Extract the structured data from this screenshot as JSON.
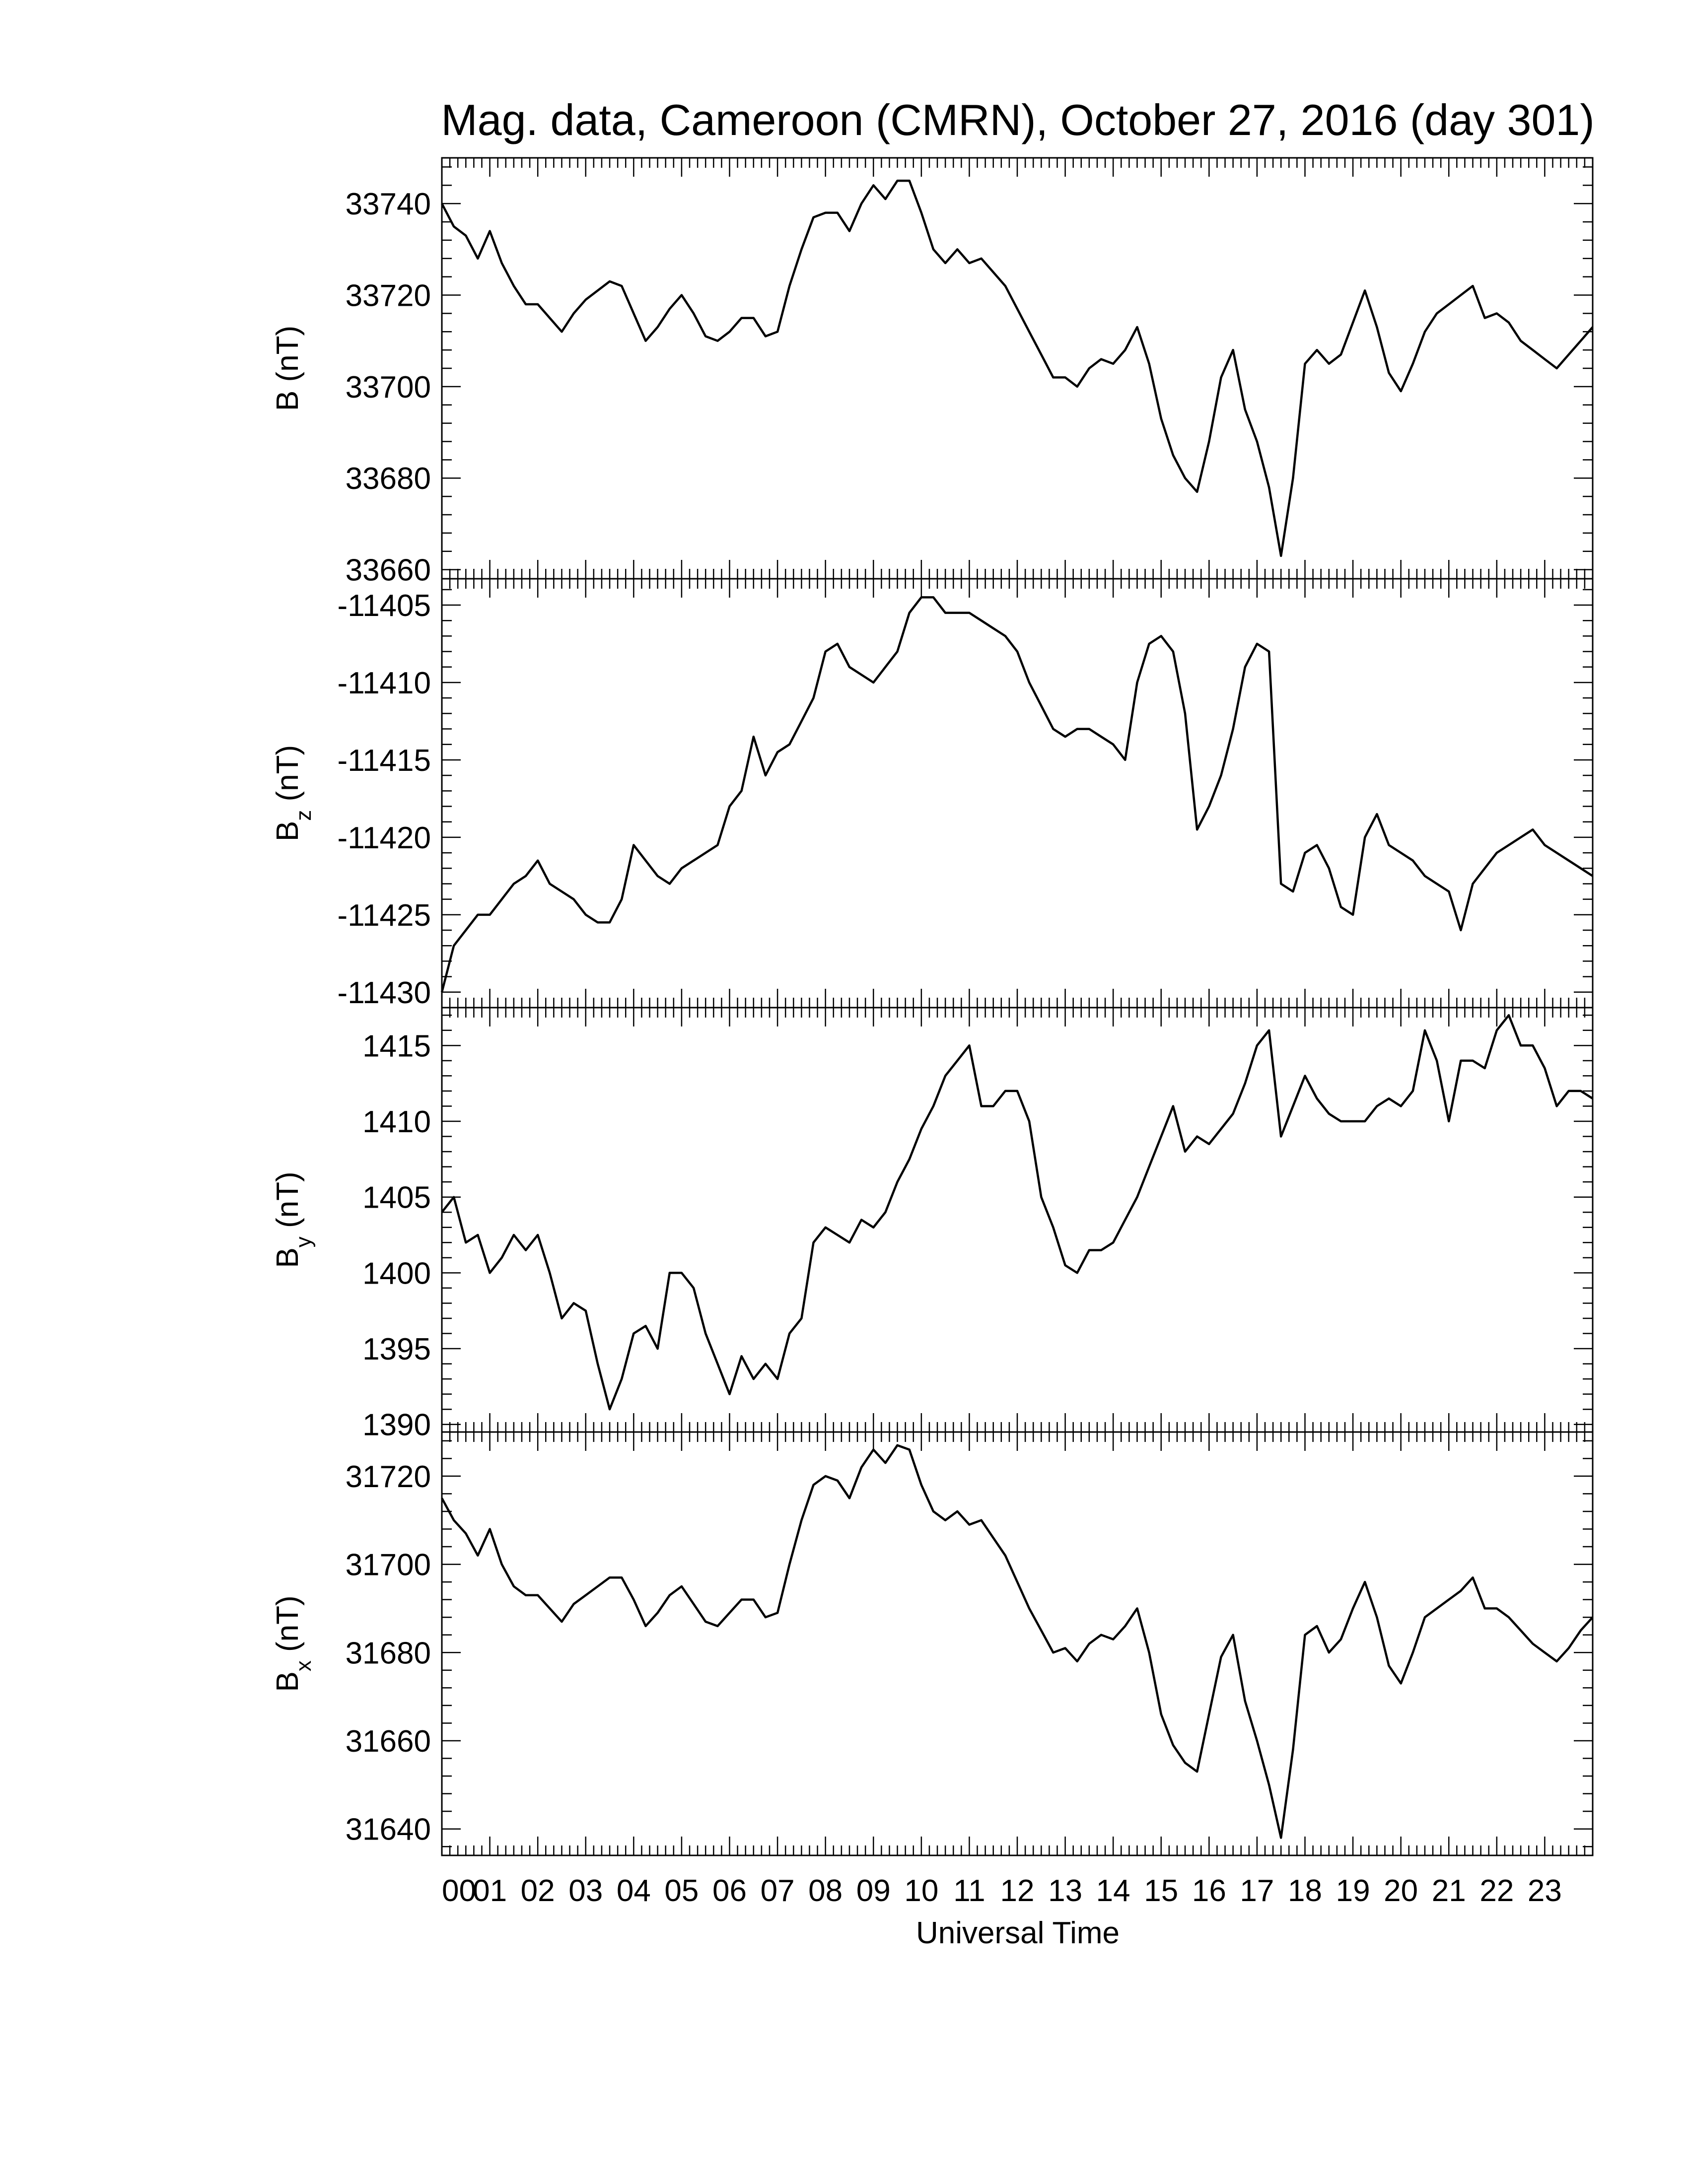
{
  "chart_data": {
    "type": "line",
    "title": "Mag. data, Cameroon (CMRN), October 27, 2016 (day 301)",
    "xlabel": "Universal Time",
    "x_unit": "hour",
    "xlim": [
      0,
      24
    ],
    "x_tick_labels": [
      "00",
      "01",
      "02",
      "03",
      "04",
      "05",
      "06",
      "07",
      "08",
      "09",
      "10",
      "11",
      "12",
      "13",
      "14",
      "15",
      "16",
      "17",
      "18",
      "19",
      "20",
      "21",
      "22",
      "23"
    ],
    "grid": false,
    "line_color": "#000000",
    "panels": [
      {
        "key": "B",
        "ylabel": "B (nT)",
        "ylabel_main": "B",
        "ylabel_sub": "",
        "ylabel_unit": "(nT)",
        "ylim": [
          33658,
          33750
        ],
        "y_ticks": [
          33660,
          33680,
          33700,
          33720,
          33740
        ],
        "series": [
          {
            "x": [
              0,
              0.25,
              0.5,
              0.75,
              1.0,
              1.25,
              1.5,
              1.75,
              2.0,
              2.25,
              2.5,
              2.75,
              3.0,
              3.25,
              3.5,
              3.75,
              4.0,
              4.25,
              4.5,
              4.75,
              5.0,
              5.25,
              5.5,
              5.75,
              6.0,
              6.25,
              6.5,
              6.75,
              7.0,
              7.25,
              7.5,
              7.75,
              8.0,
              8.25,
              8.5,
              8.75,
              9.0,
              9.25,
              9.5,
              9.75,
              10.0,
              10.25,
              10.5,
              10.75,
              11.0,
              11.25,
              11.5,
              11.75,
              12.0,
              12.25,
              12.5,
              12.75,
              13.0,
              13.25,
              13.5,
              13.75,
              14.0,
              14.25,
              14.5,
              14.75,
              15.0,
              15.25,
              15.5,
              15.75,
              16.0,
              16.25,
              16.5,
              16.75,
              17.0,
              17.25,
              17.5,
              17.75,
              18.0,
              18.25,
              18.5,
              18.75,
              19.0,
              19.25,
              19.5,
              19.75,
              20.0,
              20.25,
              20.5,
              20.75,
              21.0,
              21.25,
              21.5,
              21.75,
              22.0,
              22.25,
              22.5,
              22.75,
              23.0,
              23.25,
              23.5,
              23.75,
              24.0
            ],
            "values": [
              33740,
              33735,
              33733,
              33728,
              33734,
              33727,
              33722,
              33718,
              33718,
              33715,
              33712,
              33716,
              33719,
              33721,
              33723,
              33722,
              33716,
              33710,
              33713,
              33717,
              33720,
              33716,
              33711,
              33710,
              33712,
              33715,
              33715,
              33711,
              33712,
              33722,
              33730,
              33737,
              33738,
              33738,
              33734,
              33740,
              33744,
              33741,
              33745,
              33745,
              33738,
              33730,
              33727,
              33730,
              33727,
              33728,
              33725,
              33722,
              33717,
              33712,
              33707,
              33702,
              33702,
              33700,
              33704,
              33706,
              33705,
              33708,
              33713,
              33705,
              33693,
              33685,
              33680,
              33677,
              33688,
              33702,
              33708,
              33695,
              33688,
              33678,
              33663,
              33680,
              33705,
              33708,
              33705,
              33707,
              33714,
              33721,
              33713,
              33703,
              33699,
              33705,
              33712,
              33716,
              33718,
              33720,
              33722,
              33715,
              33716,
              33714,
              33710,
              33708,
              33706,
              33704,
              33707,
              33710,
              33713
            ]
          }
        ]
      },
      {
        "key": "Bz",
        "ylabel": "Bz (nT)",
        "ylabel_main": "B",
        "ylabel_sub": "z",
        "ylabel_unit": "(nT)",
        "ylim": [
          -11431,
          -11403.3
        ],
        "y_ticks": [
          -11430,
          -11425,
          -11420,
          -11415,
          -11410,
          -11405
        ],
        "series": [
          {
            "x": [
              0,
              0.25,
              0.5,
              0.75,
              1.0,
              1.25,
              1.5,
              1.75,
              2.0,
              2.25,
              2.5,
              2.75,
              3.0,
              3.25,
              3.5,
              3.75,
              4.0,
              4.25,
              4.5,
              4.75,
              5.0,
              5.25,
              5.5,
              5.75,
              6.0,
              6.25,
              6.5,
              6.75,
              7.0,
              7.25,
              7.5,
              7.75,
              8.0,
              8.25,
              8.5,
              8.75,
              9.0,
              9.25,
              9.5,
              9.75,
              10.0,
              10.25,
              10.5,
              10.75,
              11.0,
              11.25,
              11.5,
              11.75,
              12.0,
              12.25,
              12.5,
              12.75,
              13.0,
              13.25,
              13.5,
              13.75,
              14.0,
              14.25,
              14.5,
              14.75,
              15.0,
              15.25,
              15.5,
              15.75,
              16.0,
              16.25,
              16.5,
              16.75,
              17.0,
              17.25,
              17.5,
              17.75,
              18.0,
              18.25,
              18.5,
              18.75,
              19.0,
              19.25,
              19.5,
              19.75,
              20.0,
              20.25,
              20.5,
              20.75,
              21.0,
              21.25,
              21.5,
              21.75,
              22.0,
              22.25,
              22.5,
              22.75,
              23.0,
              23.25,
              23.5,
              23.75,
              24.0
            ],
            "values": [
              -11430,
              -11427,
              -11426,
              -11425,
              -11425,
              -11424,
              -11423,
              -11422.5,
              -11421.5,
              -11423,
              -11423.5,
              -11424,
              -11425,
              -11425.5,
              -11425.5,
              -11424,
              -11420.5,
              -11421.5,
              -11422.5,
              -11423,
              -11422,
              -11421.5,
              -11421,
              -11420.5,
              -11418,
              -11417,
              -11413.5,
              -11416,
              -11414.5,
              -11414,
              -11412.5,
              -11411,
              -11408,
              -11407.5,
              -11409,
              -11409.5,
              -11410,
              -11409,
              -11408,
              -11405.5,
              -11404.5,
              -11404.5,
              -11405.5,
              -11405.5,
              -11405.5,
              -11406,
              -11406.5,
              -11407,
              -11408,
              -11410,
              -11411.5,
              -11413,
              -11413.5,
              -11413,
              -11413,
              -11413.5,
              -11414,
              -11415,
              -11410,
              -11407.5,
              -11407,
              -11408,
              -11412,
              -11419.5,
              -11418,
              -11416,
              -11413,
              -11409,
              -11407.5,
              -11408,
              -11423,
              -11423.5,
              -11421,
              -11420.5,
              -11422,
              -11424.5,
              -11425,
              -11420,
              -11418.5,
              -11420.5,
              -11421,
              -11421.5,
              -11422.5,
              -11423,
              -11423.5,
              -11426,
              -11423,
              -11422,
              -11421,
              -11420.5,
              -11420,
              -11419.5,
              -11420.5,
              -11421,
              -11421.5,
              -11422,
              -11422.5
            ]
          }
        ]
      },
      {
        "key": "By",
        "ylabel": "By (nT)",
        "ylabel_main": "B",
        "ylabel_sub": "y",
        "ylabel_unit": "(nT)",
        "ylim": [
          1389.5,
          1417.5
        ],
        "y_ticks": [
          1390,
          1395,
          1400,
          1405,
          1410,
          1415
        ],
        "series": [
          {
            "x": [
              0,
              0.25,
              0.5,
              0.75,
              1.0,
              1.25,
              1.5,
              1.75,
              2.0,
              2.25,
              2.5,
              2.75,
              3.0,
              3.25,
              3.5,
              3.75,
              4.0,
              4.25,
              4.5,
              4.75,
              5.0,
              5.25,
              5.5,
              5.75,
              6.0,
              6.25,
              6.5,
              6.75,
              7.0,
              7.25,
              7.5,
              7.75,
              8.0,
              8.25,
              8.5,
              8.75,
              9.0,
              9.25,
              9.5,
              9.75,
              10.0,
              10.25,
              10.5,
              10.75,
              11.0,
              11.25,
              11.5,
              11.75,
              12.0,
              12.25,
              12.5,
              12.75,
              13.0,
              13.25,
              13.5,
              13.75,
              14.0,
              14.25,
              14.5,
              14.75,
              15.0,
              15.25,
              15.5,
              15.75,
              16.0,
              16.25,
              16.5,
              16.75,
              17.0,
              17.25,
              17.5,
              17.75,
              18.0,
              18.25,
              18.5,
              18.75,
              19.0,
              19.25,
              19.5,
              19.75,
              20.0,
              20.25,
              20.5,
              20.75,
              21.0,
              21.25,
              21.5,
              21.75,
              22.0,
              22.25,
              22.5,
              22.75,
              23.0,
              23.25,
              23.5,
              23.75,
              24.0
            ],
            "values": [
              1404,
              1405,
              1402,
              1402.5,
              1400,
              1401,
              1402.5,
              1401.5,
              1402.5,
              1400,
              1397,
              1398,
              1397.5,
              1394,
              1391,
              1393,
              1396,
              1396.5,
              1395,
              1400,
              1400,
              1399,
              1396,
              1394,
              1392,
              1394.5,
              1393,
              1394,
              1393,
              1396,
              1397,
              1402,
              1403,
              1402.5,
              1402,
              1403.5,
              1403,
              1404,
              1406,
              1407.5,
              1409.5,
              1411,
              1413,
              1414,
              1415,
              1411,
              1411,
              1412,
              1412,
              1410,
              1405,
              1403,
              1400.5,
              1400,
              1401.5,
              1401.5,
              1402,
              1403.5,
              1405,
              1407,
              1409,
              1411,
              1408,
              1409,
              1408.5,
              1409.5,
              1410.5,
              1412.5,
              1415,
              1416,
              1409,
              1411,
              1413,
              1411.5,
              1410.5,
              1410,
              1410,
              1410,
              1411,
              1411.5,
              1411,
              1412,
              1416,
              1414,
              1410,
              1414,
              1414,
              1413.5,
              1416,
              1417,
              1415,
              1415,
              1413.5,
              1411,
              1412,
              1412,
              1411.5
            ]
          }
        ]
      },
      {
        "key": "Bx",
        "ylabel": "Bx (nT)",
        "ylabel_main": "B",
        "ylabel_sub": "x",
        "ylabel_unit": "(nT)",
        "ylim": [
          31634,
          31730
        ],
        "y_ticks": [
          31640,
          31660,
          31680,
          31700,
          31720
        ],
        "series": [
          {
            "x": [
              0,
              0.25,
              0.5,
              0.75,
              1.0,
              1.25,
              1.5,
              1.75,
              2.0,
              2.25,
              2.5,
              2.75,
              3.0,
              3.25,
              3.5,
              3.75,
              4.0,
              4.25,
              4.5,
              4.75,
              5.0,
              5.25,
              5.5,
              5.75,
              6.0,
              6.25,
              6.5,
              6.75,
              7.0,
              7.25,
              7.5,
              7.75,
              8.0,
              8.25,
              8.5,
              8.75,
              9.0,
              9.25,
              9.5,
              9.75,
              10.0,
              10.25,
              10.5,
              10.75,
              11.0,
              11.25,
              11.5,
              11.75,
              12.0,
              12.25,
              12.5,
              12.75,
              13.0,
              13.25,
              13.5,
              13.75,
              14.0,
              14.25,
              14.5,
              14.75,
              15.0,
              15.25,
              15.5,
              15.75,
              16.0,
              16.25,
              16.5,
              16.75,
              17.0,
              17.25,
              17.5,
              17.75,
              18.0,
              18.25,
              18.5,
              18.75,
              19.0,
              19.25,
              19.5,
              19.75,
              20.0,
              20.25,
              20.5,
              20.75,
              21.0,
              21.25,
              21.5,
              21.75,
              22.0,
              22.25,
              22.5,
              22.75,
              23.0,
              23.25,
              23.5,
              23.75,
              24.0
            ],
            "values": [
              31715,
              31710,
              31707,
              31702,
              31708,
              31700,
              31695,
              31693,
              31693,
              31690,
              31687,
              31691,
              31693,
              31695,
              31697,
              31697,
              31692,
              31686,
              31689,
              31693,
              31695,
              31691,
              31687,
              31686,
              31689,
              31692,
              31692,
              31688,
              31689,
              31700,
              31710,
              31718,
              31720,
              31719,
              31715,
              31722,
              31726,
              31723,
              31727,
              31726,
              31718,
              31712,
              31710,
              31712,
              31709,
              31710,
              31706,
              31702,
              31696,
              31690,
              31685,
              31680,
              31681,
              31678,
              31682,
              31684,
              31683,
              31686,
              31690,
              31680,
              31666,
              31659,
              31655,
              31653,
              31666,
              31679,
              31684,
              31669,
              31660,
              31650,
              31638,
              31658,
              31684,
              31686,
              31680,
              31683,
              31690,
              31696,
              31688,
              31677,
              31673,
              31680,
              31688,
              31690,
              31692,
              31694,
              31697,
              31690,
              31690,
              31688,
              31685,
              31682,
              31680,
              31678,
              31681,
              31685,
              31688
            ]
          }
        ]
      }
    ]
  }
}
